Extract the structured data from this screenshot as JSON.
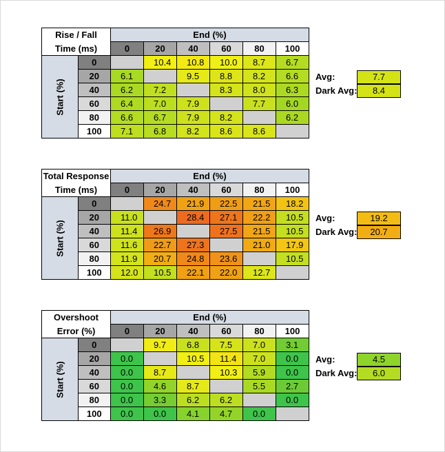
{
  "labels": {
    "end": "End (%)",
    "start": "Start (%)",
    "avg": "Avg:",
    "dark_avg": "Dark Avg:",
    "levels": [
      "0",
      "20",
      "40",
      "60",
      "80",
      "100"
    ]
  },
  "tables": [
    {
      "title_line1": "Rise / Fall",
      "title_line2": "Time (ms)",
      "avg": "7.7",
      "dark_avg": "8.4",
      "avg_color": "#d4e315",
      "dark_avg_color": "#d4e315",
      "rows": [
        {
          "values": [
            "",
            "10.4",
            "10.8",
            "10.0",
            "8.7",
            "6.7"
          ],
          "colors": [
            "",
            "#f1ef14",
            "#f3ea14",
            "#eff016",
            "#dde619",
            "#b5dc22"
          ]
        },
        {
          "values": [
            "6.1",
            "",
            "9.5",
            "8.8",
            "8.2",
            "6.6"
          ],
          "colors": [
            "#a8d923",
            "",
            "#e5ea18",
            "#dde519",
            "#d3e31c",
            "#b4dc22"
          ]
        },
        {
          "values": [
            "6.2",
            "7.2",
            "",
            "8.3",
            "8.0",
            "6.3"
          ],
          "colors": [
            "#abd923",
            "#c0df20",
            "",
            "#d5e31b",
            "#d0e21c",
            "#acda23"
          ]
        },
        {
          "values": [
            "6.4",
            "7.0",
            "7.9",
            "",
            "7.7",
            "6.0"
          ],
          "colors": [
            "#afda22",
            "#bcde21",
            "#cde11d",
            "",
            "#c9e01e",
            "#a4d724"
          ]
        },
        {
          "values": [
            "6.6",
            "6.7",
            "7.9",
            "8.2",
            "",
            "6.2"
          ],
          "colors": [
            "#b4dc22",
            "#b5dc22",
            "#cde11d",
            "#d3e31c",
            "",
            "#abd923"
          ]
        },
        {
          "values": [
            "7.1",
            "6.8",
            "8.2",
            "8.6",
            "8.6",
            ""
          ],
          "colors": [
            "#bede20",
            "#b7dc22",
            "#d3e31c",
            "#dae519",
            "#dae519",
            ""
          ]
        }
      ]
    },
    {
      "title_line1": "Total Response",
      "title_line2": "Time (ms)",
      "avg": "19.2",
      "dark_avg": "20.7",
      "avg_color": "#f2bc14",
      "dark_avg_color": "#f2ad14",
      "rows": [
        {
          "values": [
            "",
            "24.7",
            "21.9",
            "22.5",
            "21.5",
            "18.2"
          ],
          "colors": [
            "",
            "#f0891a",
            "#f0a215",
            "#f09d16",
            "#f1a615",
            "#f2c313"
          ]
        },
        {
          "values": [
            "11.0",
            "",
            "28.4",
            "27.1",
            "22.2",
            "10.5"
          ],
          "colors": [
            "#c8e01e",
            "",
            "#ee6a1e",
            "#ee751c",
            "#f09f16",
            "#c3df1f"
          ]
        },
        {
          "values": [
            "11.4",
            "26.9",
            "",
            "27.5",
            "21.5",
            "10.5"
          ],
          "colors": [
            "#cde11d",
            "#ef771c",
            "",
            "#ee721d",
            "#f1a615",
            "#c3df1f"
          ]
        },
        {
          "values": [
            "11.6",
            "22.7",
            "27.3",
            "",
            "21.0",
            "17.9"
          ],
          "colors": [
            "#d0e21c",
            "#f09b17",
            "#ee741c",
            "",
            "#f1aa14",
            "#f2c613"
          ]
        },
        {
          "values": [
            "11.9",
            "20.7",
            "24.8",
            "23.6",
            "",
            "10.5"
          ],
          "colors": [
            "#d3e31c",
            "#f1ad14",
            "#f0881a",
            "#f09318",
            "",
            "#c3df1f"
          ]
        },
        {
          "values": [
            "12.0",
            "10.5",
            "22.1",
            "22.0",
            "12.7",
            ""
          ],
          "colors": [
            "#d5e31b",
            "#c3df1f",
            "#f0a015",
            "#f0a115",
            "#dce619",
            ""
          ]
        }
      ]
    },
    {
      "title_line1": "Overshoot",
      "title_line2": "Error (%)",
      "avg": "4.5",
      "dark_avg": "6.0",
      "avg_color": "#8ed42a",
      "dark_avg_color": "#b4dc22",
      "rows": [
        {
          "values": [
            "",
            "9.7",
            "6.8",
            "7.5",
            "7.0",
            "3.1"
          ],
          "colors": [
            "",
            "#f0ec16",
            "#c9e01e",
            "#d6e31b",
            "#cce11d",
            "#72cc33"
          ]
        },
        {
          "values": [
            "0.0",
            "",
            "10.5",
            "11.4",
            "7.0",
            "0.0"
          ],
          "colors": [
            "#3ec44a",
            "",
            "#f1ef14",
            "#f2e414",
            "#cce11d",
            "#3ec44a"
          ]
        },
        {
          "values": [
            "0.0",
            "8.7",
            "",
            "10.3",
            "5.9",
            "0.0"
          ],
          "colors": [
            "#3ec44a",
            "#e6e918",
            "",
            "#f1ef14",
            "#b2db22",
            "#3ec44a"
          ]
        },
        {
          "values": [
            "0.0",
            "4.6",
            "8.7",
            "",
            "5.5",
            "2.7"
          ],
          "colors": [
            "#3ec44a",
            "#92d429",
            "#e6e918",
            "",
            "#aad923",
            "#6ccb35"
          ]
        },
        {
          "values": [
            "0.0",
            "3.3",
            "6.2",
            "6.2",
            "",
            "0.0"
          ],
          "colors": [
            "#3ec44a",
            "#76cd32",
            "#bcde21",
            "#bcde21",
            "",
            "#3ec44a"
          ]
        },
        {
          "values": [
            "0.0",
            "0.0",
            "4.1",
            "4.7",
            "0.0",
            ""
          ],
          "colors": [
            "#3ec44a",
            "#3ec44a",
            "#87d22d",
            "#94d429",
            "#3ec44a",
            ""
          ]
        }
      ]
    }
  ],
  "colors": {
    "diagonal": "#d0d0d0",
    "header_band": "#d6dce5"
  }
}
